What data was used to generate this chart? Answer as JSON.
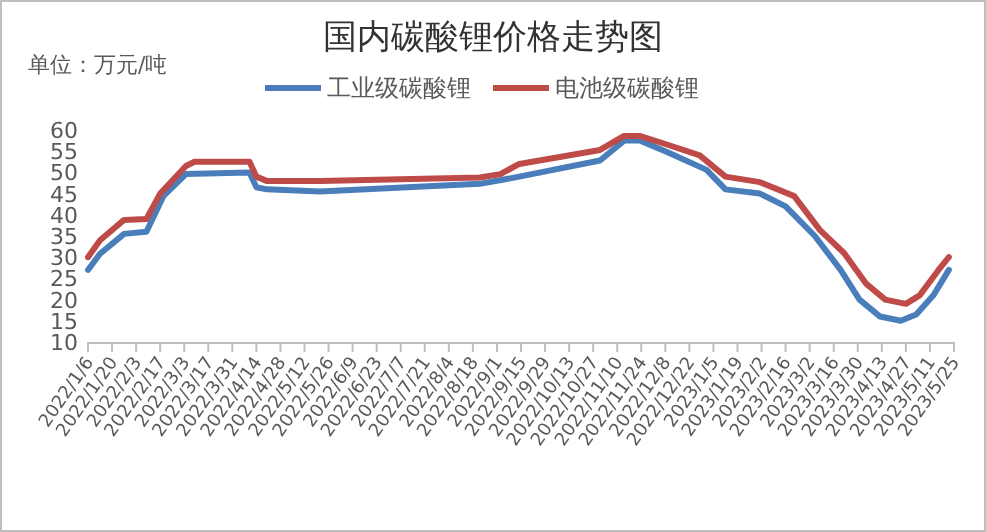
{
  "chart_data": {
    "type": "line",
    "title": "国内碳酸锂价格走势图",
    "annotations": [
      "单位：万元/吨"
    ],
    "legend": "top",
    "grid": false,
    "xlim": [
      "2022-01-06",
      "2023-05-25"
    ],
    "xticks": [
      {
        "value": "2022-01-06",
        "label": "2022/1/6"
      },
      {
        "value": "2022-01-20",
        "label": "2022/1/20"
      },
      {
        "value": "2022-02-03",
        "label": "2022/2/3"
      },
      {
        "value": "2022-02-17",
        "label": "2022/2/17"
      },
      {
        "value": "2022-03-03",
        "label": "2022/3/3"
      },
      {
        "value": "2022-03-17",
        "label": "2022/3/17"
      },
      {
        "value": "2022-03-31",
        "label": "2022/3/31"
      },
      {
        "value": "2022-04-14",
        "label": "2022/4/14"
      },
      {
        "value": "2022-04-28",
        "label": "2022/4/28"
      },
      {
        "value": "2022-05-12",
        "label": "2022/5/12"
      },
      {
        "value": "2022-05-26",
        "label": "2022/5/26"
      },
      {
        "value": "2022-06-09",
        "label": "2022/6/9"
      },
      {
        "value": "2022-06-23",
        "label": "2022/6/23"
      },
      {
        "value": "2022-07-07",
        "label": "2022/7/7"
      },
      {
        "value": "2022-07-21",
        "label": "2022/7/21"
      },
      {
        "value": "2022-08-04",
        "label": "2022/8/4"
      },
      {
        "value": "2022-08-18",
        "label": "2022/8/18"
      },
      {
        "value": "2022-09-01",
        "label": "2022/9/1"
      },
      {
        "value": "2022-09-15",
        "label": "2022/9/15"
      },
      {
        "value": "2022-09-29",
        "label": "2022/9/29"
      },
      {
        "value": "2022-10-13",
        "label": "2022/10/13"
      },
      {
        "value": "2022-10-27",
        "label": "2022/10/27"
      },
      {
        "value": "2022-11-10",
        "label": "2022/11/10"
      },
      {
        "value": "2022-11-24",
        "label": "2022/11/24"
      },
      {
        "value": "2022-12-08",
        "label": "2022/12/8"
      },
      {
        "value": "2022-12-22",
        "label": "2022/12/22"
      },
      {
        "value": "2023-01-05",
        "label": "2023/1/5"
      },
      {
        "value": "2023-01-19",
        "label": "2023/1/19"
      },
      {
        "value": "2023-02-02",
        "label": "2023/2/2"
      },
      {
        "value": "2023-02-16",
        "label": "2023/2/16"
      },
      {
        "value": "2023-03-02",
        "label": "2023/3/2"
      },
      {
        "value": "2023-03-16",
        "label": "2023/3/16"
      },
      {
        "value": "2023-03-30",
        "label": "2023/3/30"
      },
      {
        "value": "2023-04-13",
        "label": "2023/4/13"
      },
      {
        "value": "2023-04-27",
        "label": "2023/4/27"
      },
      {
        "value": "2023-05-11",
        "label": "2023/5/11"
      },
      {
        "value": "2023-05-25",
        "label": "2023/5/25"
      }
    ],
    "ylim": [
      10,
      60
    ],
    "yticks": [
      10,
      15,
      20,
      25,
      30,
      35,
      40,
      45,
      50,
      55,
      60
    ],
    "series": [
      {
        "name": "工业级碳酸锂",
        "color": "#4a7ebb",
        "x": [
          "2022-01-06",
          "2022-01-13",
          "2022-01-27",
          "2022-02-09",
          "2022-02-19",
          "2022-03-04",
          "2022-04-10",
          "2022-04-14",
          "2022-04-20",
          "2022-05-21",
          "2022-08-22",
          "2022-09-14",
          "2022-10-31",
          "2022-11-14",
          "2022-11-23",
          "2022-12-08",
          "2023-01-01",
          "2023-01-12",
          "2023-02-01",
          "2023-02-16",
          "2023-03-05",
          "2023-03-20",
          "2023-03-31",
          "2023-04-12",
          "2023-04-24",
          "2023-05-03",
          "2023-05-13",
          "2023-05-22"
        ],
        "values": [
          27,
          30.8,
          35.5,
          36,
          44.5,
          49.6,
          50,
          46.5,
          46,
          45.5,
          47.3,
          49,
          52.8,
          57.5,
          57.5,
          55,
          50.6,
          46,
          45,
          42,
          35,
          27,
          20,
          16,
          15,
          16.5,
          21,
          27
        ]
      },
      {
        "name": "电池级碳酸锂",
        "color": "#be4b48",
        "x": [
          "2022-01-06",
          "2022-01-13",
          "2022-01-27",
          "2022-02-09",
          "2022-02-17",
          "2022-03-04",
          "2022-03-09",
          "2022-04-10",
          "2022-04-14",
          "2022-04-20",
          "2022-05-21",
          "2022-08-22",
          "2022-09-03",
          "2022-09-14",
          "2022-10-31",
          "2022-11-14",
          "2022-11-23",
          "2022-12-08",
          "2022-12-28",
          "2023-01-12",
          "2023-02-01",
          "2023-02-21",
          "2023-03-08",
          "2023-03-22",
          "2023-04-04",
          "2023-04-15",
          "2023-04-27",
          "2023-05-05",
          "2023-05-16",
          "2023-05-22"
        ],
        "values": [
          30,
          34,
          38.8,
          39,
          45,
          51.5,
          52.5,
          52.5,
          49,
          48,
          48,
          48.8,
          49.6,
          52,
          55.3,
          58.6,
          58.6,
          56.7,
          54,
          49,
          47.7,
          44.4,
          36.4,
          31,
          23.7,
          20,
          19,
          21,
          27,
          30
        ]
      }
    ]
  }
}
